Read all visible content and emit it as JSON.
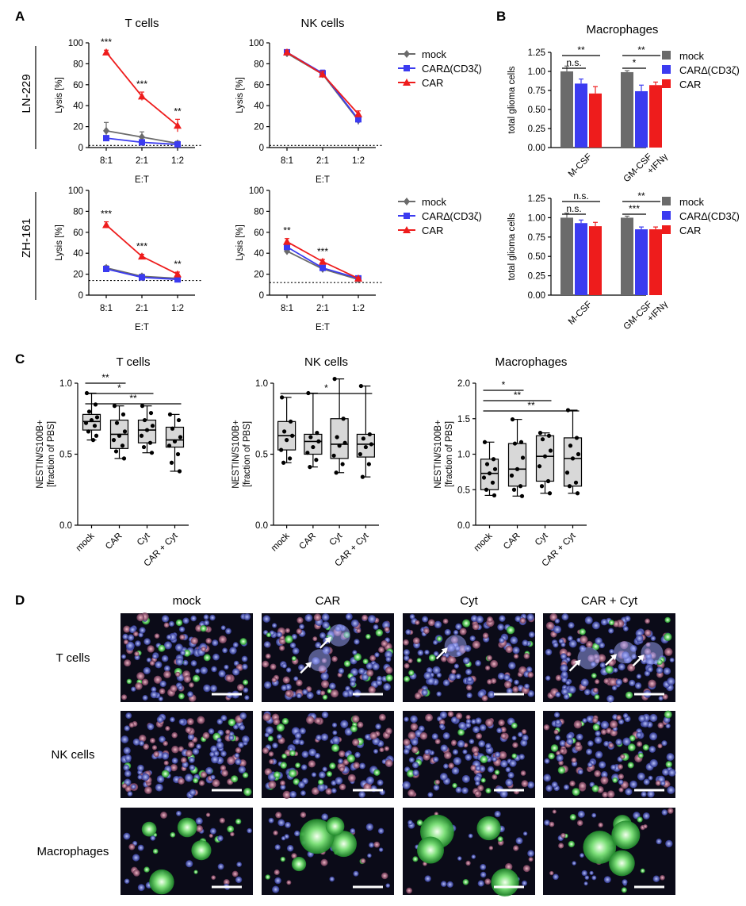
{
  "panel_labels": [
    "A",
    "B",
    "C",
    "D"
  ],
  "colors": {
    "mock": "#6b6b6b",
    "car_delta": "#3b3bf0",
    "car": "#ee1c1c",
    "box_fill": "#d8d8d8"
  },
  "icons": {
    "mock_marker": "diamond",
    "car_delta_marker": "square",
    "car_marker": "triangle"
  },
  "row_labels_A": [
    "LN-229",
    "ZH-161"
  ],
  "chart_data": [
    {
      "id": "A1",
      "type": "line",
      "title": "T cells",
      "row": "LN-229",
      "xlabel": "E:T",
      "ylabel": "Lysis [%]",
      "categories": [
        "8:1",
        "2:1",
        "1:2"
      ],
      "ylim": [
        0,
        100
      ],
      "yticks": [
        0,
        20,
        40,
        60,
        80,
        100
      ],
      "baseline": 2,
      "series": [
        {
          "name": "mock",
          "values": [
            16,
            10,
            4
          ],
          "err": [
            8,
            5,
            2
          ]
        },
        {
          "name": "CAR∆(CD3ζ)",
          "values": [
            9,
            5,
            3
          ],
          "err": [
            1,
            1,
            1
          ]
        },
        {
          "name": "CAR",
          "values": [
            91,
            49,
            21
          ],
          "err": [
            2,
            4,
            6
          ]
        }
      ],
      "annotations": [
        "***",
        "***",
        "**"
      ]
    },
    {
      "id": "A2",
      "type": "line",
      "title": "NK cells",
      "row": "LN-229",
      "xlabel": "E:T",
      "ylabel": "Lysis [%]",
      "categories": [
        "8:1",
        "2:1",
        "1:2"
      ],
      "ylim": [
        0,
        100
      ],
      "yticks": [
        0,
        20,
        40,
        60,
        80,
        100
      ],
      "baseline": 2,
      "series": [
        {
          "name": "mock",
          "values": [
            90,
            70,
            26
          ],
          "err": [
            2,
            3,
            4
          ]
        },
        {
          "name": "CAR∆(CD3ζ)",
          "values": [
            91,
            71,
            27
          ],
          "err": [
            2,
            3,
            4
          ]
        },
        {
          "name": "CAR",
          "values": [
            91,
            70,
            32
          ],
          "err": [
            2,
            3,
            3
          ]
        }
      ],
      "legend": [
        "mock",
        "CAR∆(CD3ζ)",
        "CAR"
      ],
      "annotations": []
    },
    {
      "id": "A3",
      "type": "line",
      "title": "",
      "row": "ZH-161",
      "xlabel": "E:T",
      "ylabel": "Lysis [%]",
      "categories": [
        "8:1",
        "2:1",
        "1:2"
      ],
      "ylim": [
        0,
        100
      ],
      "yticks": [
        0,
        20,
        40,
        60,
        80,
        100
      ],
      "baseline": 14,
      "series": [
        {
          "name": "mock",
          "values": [
            26,
            18,
            16
          ],
          "err": [
            2,
            2,
            1
          ]
        },
        {
          "name": "CAR∆(CD3ζ)",
          "values": [
            25,
            17,
            15
          ],
          "err": [
            2,
            1,
            1
          ]
        },
        {
          "name": "CAR",
          "values": [
            67,
            37,
            20
          ],
          "err": [
            3,
            2,
            2
          ]
        }
      ],
      "annotations": [
        "***",
        "***",
        "**"
      ]
    },
    {
      "id": "A4",
      "type": "line",
      "title": "",
      "row": "ZH-161",
      "xlabel": "E:T",
      "ylabel": "Lysis [%]",
      "categories": [
        "8:1",
        "2:1",
        "1:2"
      ],
      "ylim": [
        0,
        100
      ],
      "yticks": [
        0,
        20,
        40,
        60,
        80,
        100
      ],
      "baseline": 12,
      "series": [
        {
          "name": "mock",
          "values": [
            42,
            25,
            15
          ],
          "err": [
            2,
            1,
            1
          ]
        },
        {
          "name": "CAR∆(CD3ζ)",
          "values": [
            46,
            26,
            16
          ],
          "err": [
            2,
            1,
            1
          ]
        },
        {
          "name": "CAR",
          "values": [
            51,
            32,
            16
          ],
          "err": [
            3,
            2,
            1
          ]
        }
      ],
      "legend": [
        "mock",
        "CAR∆(CD3ζ)",
        "CAR"
      ],
      "annotations": [
        "**",
        "***"
      ]
    },
    {
      "id": "B1",
      "type": "bar",
      "title": "Macrophages",
      "ylabel": "total glioma cells",
      "categories": [
        "M-CSF",
        "GM-CSF\n+IFNγ"
      ],
      "ylim": [
        0,
        1.25
      ],
      "yticks": [
        0.0,
        0.25,
        0.5,
        0.75,
        1.0,
        1.25
      ],
      "series": [
        {
          "name": "mock",
          "values": [
            1.0,
            0.99
          ],
          "err": [
            0.07,
            0.02
          ]
        },
        {
          "name": "CAR∆(CD3ζ)",
          "values": [
            0.84,
            0.74
          ],
          "err": [
            0.06,
            0.08
          ]
        },
        {
          "name": "CAR",
          "values": [
            0.71,
            0.82
          ],
          "err": [
            0.09,
            0.04
          ]
        }
      ],
      "legend": [
        "mock",
        "CAR∆(CD3ζ)",
        "CAR"
      ],
      "annotations": [
        "**",
        "n.s.",
        "**",
        "*"
      ]
    },
    {
      "id": "B2",
      "type": "bar",
      "title": "",
      "ylabel": "total glioma cells",
      "categories": [
        "M-CSF",
        "GM-CSF\n+IFNγ"
      ],
      "ylim": [
        0,
        1.25
      ],
      "yticks": [
        0.0,
        0.25,
        0.5,
        0.75,
        1.0,
        1.25
      ],
      "series": [
        {
          "name": "mock",
          "values": [
            1.0,
            1.0
          ],
          "err": [
            0.06,
            0.02
          ]
        },
        {
          "name": "CAR∆(CD3ζ)",
          "values": [
            0.93,
            0.85
          ],
          "err": [
            0.04,
            0.03
          ]
        },
        {
          "name": "CAR",
          "values": [
            0.89,
            0.85
          ],
          "err": [
            0.05,
            0.03
          ]
        }
      ],
      "legend": [
        "mock",
        "CAR∆(CD3ζ)",
        "CAR"
      ],
      "annotations": [
        "n.s.",
        "n.s.",
        "**",
        "***"
      ]
    },
    {
      "id": "C1",
      "type": "box",
      "title": "T cells",
      "ylabel": "NESTIN/S100B+\n[fraction of PBS]",
      "categories": [
        "mock",
        "CAR",
        "Cyt",
        "CAR + Cyt"
      ],
      "ylim": [
        0,
        1.0
      ],
      "yticks": [
        0.0,
        0.5,
        1.0
      ],
      "boxes": [
        {
          "min": 0.6,
          "q1": 0.67,
          "median": 0.73,
          "q3": 0.78,
          "max": 0.93
        },
        {
          "min": 0.47,
          "q1": 0.54,
          "median": 0.64,
          "q3": 0.74,
          "max": 0.84
        },
        {
          "min": 0.51,
          "q1": 0.58,
          "median": 0.67,
          "q3": 0.74,
          "max": 0.84
        },
        {
          "min": 0.38,
          "q1": 0.55,
          "median": 0.6,
          "q3": 0.69,
          "max": 0.78
        }
      ],
      "points": [
        [
          0.93,
          0.85,
          0.8,
          0.76,
          0.74,
          0.72,
          0.7,
          0.66,
          0.63,
          0.6
        ],
        [
          0.84,
          0.78,
          0.72,
          0.66,
          0.63,
          0.6,
          0.56,
          0.52,
          0.47
        ],
        [
          0.84,
          0.79,
          0.74,
          0.7,
          0.67,
          0.63,
          0.58,
          0.55,
          0.51
        ],
        [
          0.78,
          0.74,
          0.68,
          0.62,
          0.59,
          0.56,
          0.5,
          0.44,
          0.38
        ]
      ],
      "annotations": [
        "**",
        "*",
        "**"
      ]
    },
    {
      "id": "C2",
      "type": "box",
      "title": "NK cells",
      "ylabel": "NESTIN/S100B+\n[fraction of PBS]",
      "categories": [
        "mock",
        "CAR",
        "Cyt",
        "CAR + Cyt"
      ],
      "ylim": [
        0,
        1.0
      ],
      "yticks": [
        0.0,
        0.5,
        1.0
      ],
      "boxes": [
        {
          "min": 0.44,
          "q1": 0.53,
          "median": 0.63,
          "q3": 0.73,
          "max": 0.9
        },
        {
          "min": 0.41,
          "q1": 0.5,
          "median": 0.59,
          "q3": 0.64,
          "max": 0.93
        },
        {
          "min": 0.37,
          "q1": 0.47,
          "median": 0.57,
          "q3": 0.75,
          "max": 1.03
        },
        {
          "min": 0.34,
          "q1": 0.48,
          "median": 0.57,
          "q3": 0.64,
          "max": 0.98
        }
      ],
      "points": [
        [
          0.9,
          0.73,
          0.66,
          0.63,
          0.6,
          0.53,
          0.47,
          0.44
        ],
        [
          0.93,
          0.65,
          0.62,
          0.59,
          0.55,
          0.51,
          0.46,
          0.41
        ],
        [
          1.03,
          0.75,
          0.62,
          0.58,
          0.56,
          0.49,
          0.43,
          0.37
        ],
        [
          0.98,
          0.64,
          0.61,
          0.57,
          0.55,
          0.5,
          0.43,
          0.34
        ]
      ],
      "annotations": [
        "*"
      ]
    },
    {
      "id": "C3",
      "type": "box",
      "title": "Macrophages",
      "ylabel": "NESTIN/S100B+\n[fraction of PBS]",
      "categories": [
        "mock",
        "CAR",
        "Cyt",
        "CAR + Cyt"
      ],
      "ylim": [
        0,
        2.0
      ],
      "yticks": [
        0.0,
        0.5,
        1.0,
        1.5,
        2.0
      ],
      "boxes": [
        {
          "min": 0.42,
          "q1": 0.5,
          "median": 0.73,
          "q3": 0.93,
          "max": 1.17
        },
        {
          "min": 0.41,
          "q1": 0.55,
          "median": 0.79,
          "q3": 1.15,
          "max": 1.49
        },
        {
          "min": 0.45,
          "q1": 0.62,
          "median": 0.97,
          "q3": 1.26,
          "max": 1.3
        },
        {
          "min": 0.45,
          "q1": 0.55,
          "median": 0.94,
          "q3": 1.23,
          "max": 1.62
        }
      ],
      "points": [
        [
          1.17,
          0.93,
          0.86,
          0.79,
          0.73,
          0.67,
          0.6,
          0.5,
          0.42
        ],
        [
          1.49,
          1.17,
          1.15,
          0.95,
          0.79,
          0.7,
          0.55,
          0.5,
          0.41
        ],
        [
          1.3,
          1.26,
          1.21,
          1.05,
          0.97,
          0.83,
          0.62,
          0.55,
          0.45
        ],
        [
          1.62,
          1.23,
          1.12,
          1.0,
          0.94,
          0.74,
          0.6,
          0.55,
          0.45
        ]
      ],
      "annotations": [
        "*",
        "**",
        "**"
      ]
    }
  ],
  "panel_D": {
    "columns": [
      "mock",
      "CAR",
      "Cyt",
      "CAR + Cyt"
    ],
    "rows": [
      "T cells",
      "NK cells",
      "Macrophages"
    ]
  }
}
